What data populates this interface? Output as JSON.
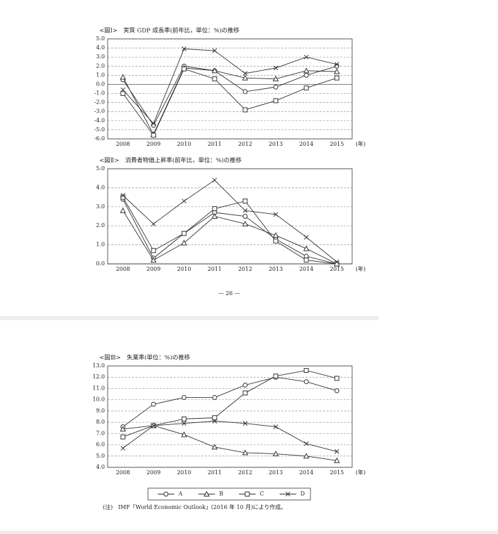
{
  "chart_data": [
    {
      "type": "line",
      "title": "<図Ⅰ>　実質 GDP 成長率(前年比，単位：%)の推移",
      "x_unit": "(年)",
      "categories": [
        "2008",
        "2009",
        "2010",
        "2011",
        "2012",
        "2013",
        "2014",
        "2015"
      ],
      "series": [
        {
          "marker": "circle",
          "color": "#333333",
          "values": [
            0.5,
            -4.5,
            2.0,
            1.5,
            -0.8,
            -0.3,
            1.0,
            2.0
          ]
        },
        {
          "marker": "triangle",
          "color": "#333333",
          "values": [
            0.8,
            -5.5,
            1.8,
            1.5,
            0.7,
            0.6,
            1.5,
            1.4
          ]
        },
        {
          "marker": "square",
          "color": "#333333",
          "values": [
            -1.0,
            -5.6,
            1.7,
            0.6,
            -2.8,
            -1.8,
            -0.4,
            0.7
          ]
        },
        {
          "marker": "x",
          "color": "#333333",
          "values": [
            -0.6,
            -4.3,
            3.9,
            3.7,
            1.2,
            1.8,
            3.0,
            2.2
          ]
        }
      ],
      "ylim": [
        -6,
        5
      ],
      "yticks": [
        {
          "value": -6,
          "label": "-6.0"
        },
        {
          "value": -5,
          "label": "-5.0"
        },
        {
          "value": -4,
          "label": "-4.0"
        },
        {
          "value": -3,
          "label": "-3.0"
        },
        {
          "value": -2,
          "label": "-2.0"
        },
        {
          "value": -1,
          "label": "-1.0"
        },
        {
          "value": 0,
          "label": "0.0"
        },
        {
          "value": 1,
          "label": "1.0"
        },
        {
          "value": 2,
          "label": "2.0"
        },
        {
          "value": 3,
          "label": "3.0"
        },
        {
          "value": 4,
          "label": "4.0"
        },
        {
          "value": 5,
          "label": "5.0"
        }
      ],
      "grid": true
    },
    {
      "type": "line",
      "title": "<図Ⅱ>　消費者物価上昇率(前年比，単位：%)の推移",
      "x_unit": "(年)",
      "categories": [
        "2008",
        "2009",
        "2010",
        "2011",
        "2012",
        "2013",
        "2014",
        "2015"
      ],
      "series": [
        {
          "marker": "circle",
          "color": "#333333",
          "values": [
            3.4,
            0.3,
            1.6,
            2.7,
            2.5,
            1.3,
            0.4,
            0.0
          ]
        },
        {
          "marker": "triangle",
          "color": "#333333",
          "values": [
            2.8,
            0.2,
            1.1,
            2.5,
            2.1,
            1.5,
            0.8,
            0.0
          ]
        },
        {
          "marker": "square",
          "color": "#333333",
          "values": [
            3.5,
            0.7,
            1.6,
            2.9,
            3.3,
            1.2,
            0.2,
            0.0
          ]
        },
        {
          "marker": "x",
          "color": "#333333",
          "values": [
            3.6,
            2.1,
            3.3,
            4.4,
            2.8,
            2.6,
            1.4,
            0.1
          ]
        }
      ],
      "ylim": [
        0,
        5
      ],
      "yticks": [
        {
          "value": 0,
          "label": "0.0"
        },
        {
          "value": 1,
          "label": "1.0"
        },
        {
          "value": 2,
          "label": "2.0"
        },
        {
          "value": 3,
          "label": "3.0"
        },
        {
          "value": 4,
          "label": "4.0"
        },
        {
          "value": 5,
          "label": "5.0"
        }
      ],
      "grid": true
    },
    {
      "type": "line",
      "title": "<図Ⅲ>　失業率(単位：%)の推移",
      "x_unit": "(年)",
      "categories": [
        "2008",
        "2009",
        "2010",
        "2011",
        "2012",
        "2013",
        "2014",
        "2015"
      ],
      "series": [
        {
          "name": "A",
          "marker": "circle",
          "color": "#333333",
          "values": [
            7.6,
            9.6,
            10.2,
            10.2,
            11.3,
            12.0,
            11.6,
            10.8
          ]
        },
        {
          "name": "B",
          "marker": "triangle",
          "color": "#333333",
          "values": [
            7.4,
            7.7,
            6.9,
            5.8,
            5.3,
            5.2,
            5.0,
            4.6
          ]
        },
        {
          "name": "C",
          "marker": "square",
          "color": "#333333",
          "values": [
            6.7,
            7.7,
            8.3,
            8.4,
            10.6,
            12.1,
            12.6,
            11.9
          ]
        },
        {
          "name": "D",
          "marker": "x",
          "color": "#333333",
          "values": [
            5.7,
            7.7,
            7.9,
            8.1,
            7.9,
            7.6,
            6.1,
            5.4
          ]
        }
      ],
      "ylim": [
        4,
        13
      ],
      "yticks": [
        {
          "value": 4,
          "label": "4.0"
        },
        {
          "value": 5,
          "label": "5.0"
        },
        {
          "value": 6,
          "label": "6.0"
        },
        {
          "value": 7,
          "label": "7.0"
        },
        {
          "value": 8,
          "label": "8.0"
        },
        {
          "value": 9,
          "label": "9.0"
        },
        {
          "value": 10,
          "label": "10.0"
        },
        {
          "value": 11,
          "label": "11.0"
        },
        {
          "value": 12,
          "label": "12.0"
        },
        {
          "value": 13,
          "label": "13.0"
        }
      ],
      "grid": true,
      "legend": "bottom"
    }
  ],
  "page_number": "— 26 —",
  "note": "(注)　IMF「World Economic Outlook」(2016 年 10 月)により作成。"
}
